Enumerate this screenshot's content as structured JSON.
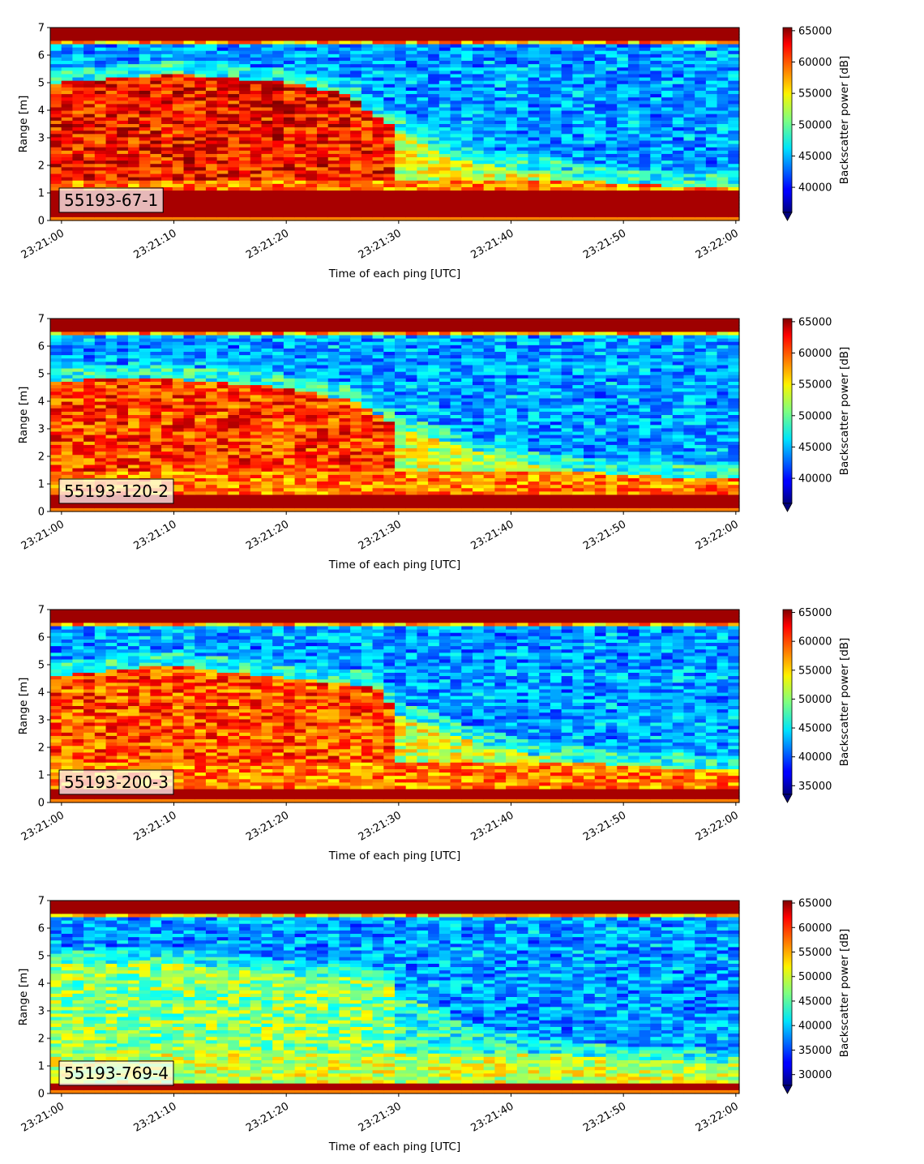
{
  "chart_data": [
    {
      "type": "heatmap",
      "panel_label": "55193-67-1",
      "xlabel": "Time of each ping [UTC]",
      "ylabel": "Range [m]",
      "colorbar_label": "Backscatter power [dB]",
      "x_ticks": [
        "23:21:00",
        "23:21:10",
        "23:21:20",
        "23:21:30",
        "23:21:40",
        "23:21:50",
        "23:22:00"
      ],
      "x_range_seconds": [
        -1,
        60.3
      ],
      "y_ticks": [
        "0",
        "1",
        "2",
        "3",
        "4",
        "5",
        "6",
        "7"
      ],
      "ylim": [
        0,
        7
      ],
      "colorbar_ticks": [
        "40000",
        "45000",
        "50000",
        "55000",
        "60000",
        "65000"
      ],
      "clim": [
        36000,
        65500
      ],
      "colormap": "jet",
      "extend": "min",
      "patterns": {
        "upper_boundary": [
          [
            0,
            5.0
          ],
          [
            10,
            5.3
          ],
          [
            20,
            5.0
          ],
          [
            25,
            4.6
          ],
          [
            30,
            3.3
          ],
          [
            35,
            2.2
          ],
          [
            42,
            1.8
          ],
          [
            50,
            1.3
          ],
          [
            60,
            1.2
          ]
        ],
        "upper_level": 0.9,
        "bottom_band": [
          0.1,
          1.1
        ],
        "lower_mix": 0.62
      }
    },
    {
      "type": "heatmap",
      "panel_label": "55193-120-2",
      "xlabel": "Time of each ping [UTC]",
      "ylabel": "Range [m]",
      "colorbar_label": "Backscatter power [dB]",
      "x_ticks": [
        "23:21:00",
        "23:21:10",
        "23:21:20",
        "23:21:30",
        "23:21:40",
        "23:21:50",
        "23:22:00"
      ],
      "x_range_seconds": [
        -1,
        60.3
      ],
      "y_ticks": [
        "0",
        "1",
        "2",
        "3",
        "4",
        "5",
        "6",
        "7"
      ],
      "ylim": [
        0,
        7
      ],
      "colorbar_ticks": [
        "40000",
        "45000",
        "50000",
        "55000",
        "60000",
        "65000"
      ],
      "clim": [
        36000,
        65500
      ],
      "colormap": "jet",
      "extend": "min",
      "patterns": {
        "upper_boundary": [
          [
            0,
            4.7
          ],
          [
            7,
            4.9
          ],
          [
            20,
            4.5
          ],
          [
            26,
            4.0
          ],
          [
            30,
            3.0
          ],
          [
            36,
            2.3
          ],
          [
            42,
            1.7
          ],
          [
            50,
            1.3
          ],
          [
            60,
            1.2
          ]
        ],
        "upper_level": 0.86,
        "bottom_band": [
          0.1,
          0.55
        ],
        "lower_mix": 0.62
      }
    },
    {
      "type": "heatmap",
      "panel_label": "55193-200-3",
      "xlabel": "Time of each ping [UTC]",
      "ylabel": "Range [m]",
      "colorbar_label": "Backscatter power [dB]",
      "x_ticks": [
        "23:21:00",
        "23:21:10",
        "23:21:20",
        "23:21:30",
        "23:21:40",
        "23:21:50",
        "23:22:00"
      ],
      "x_range_seconds": [
        -1,
        60.3
      ],
      "y_ticks": [
        "0",
        "1",
        "2",
        "3",
        "4",
        "5",
        "6",
        "7"
      ],
      "ylim": [
        0,
        7
      ],
      "colorbar_ticks": [
        "35000",
        "40000",
        "45000",
        "50000",
        "55000",
        "60000",
        "65000"
      ],
      "clim": [
        33500,
        65500
      ],
      "colormap": "jet",
      "extend": "min",
      "patterns": {
        "upper_boundary": [
          [
            0,
            4.6
          ],
          [
            9,
            5.0
          ],
          [
            20,
            4.5
          ],
          [
            28,
            4.2
          ],
          [
            30,
            3.2
          ],
          [
            36,
            2.3
          ],
          [
            42,
            1.7
          ],
          [
            50,
            1.3
          ],
          [
            60,
            1.2
          ]
        ],
        "upper_level": 0.84,
        "bottom_band": [
          0.1,
          0.45
        ],
        "lower_mix": 0.62
      }
    },
    {
      "type": "heatmap",
      "panel_label": "55193-769-4",
      "xlabel": "Time of each ping [UTC]",
      "ylabel": "Range [m]",
      "colorbar_label": "Backscatter power [dB]",
      "x_ticks": [
        "23:21:00",
        "23:21:10",
        "23:21:20",
        "23:21:30",
        "23:21:40",
        "23:21:50",
        "23:22:00"
      ],
      "x_range_seconds": [
        -1,
        60.3
      ],
      "y_ticks": [
        "0",
        "1",
        "2",
        "3",
        "4",
        "5",
        "6",
        "7"
      ],
      "ylim": [
        0,
        7
      ],
      "colorbar_ticks": [
        "30000",
        "35000",
        "40000",
        "45000",
        "50000",
        "55000",
        "60000",
        "65000"
      ],
      "clim": [
        27800,
        65500
      ],
      "colormap": "jet",
      "extend": "min",
      "patterns": {
        "upper_boundary": [
          [
            0,
            4.7
          ],
          [
            9,
            4.8
          ],
          [
            20,
            4.3
          ],
          [
            29,
            4.1
          ],
          [
            30,
            3.3
          ],
          [
            36,
            1.9
          ],
          [
            42,
            1.5
          ],
          [
            50,
            1.2
          ],
          [
            60,
            1.1
          ]
        ],
        "upper_level": 0.55,
        "bottom_band": [
          0.15,
          0.35
        ],
        "lower_mix": 0.45
      }
    }
  ]
}
